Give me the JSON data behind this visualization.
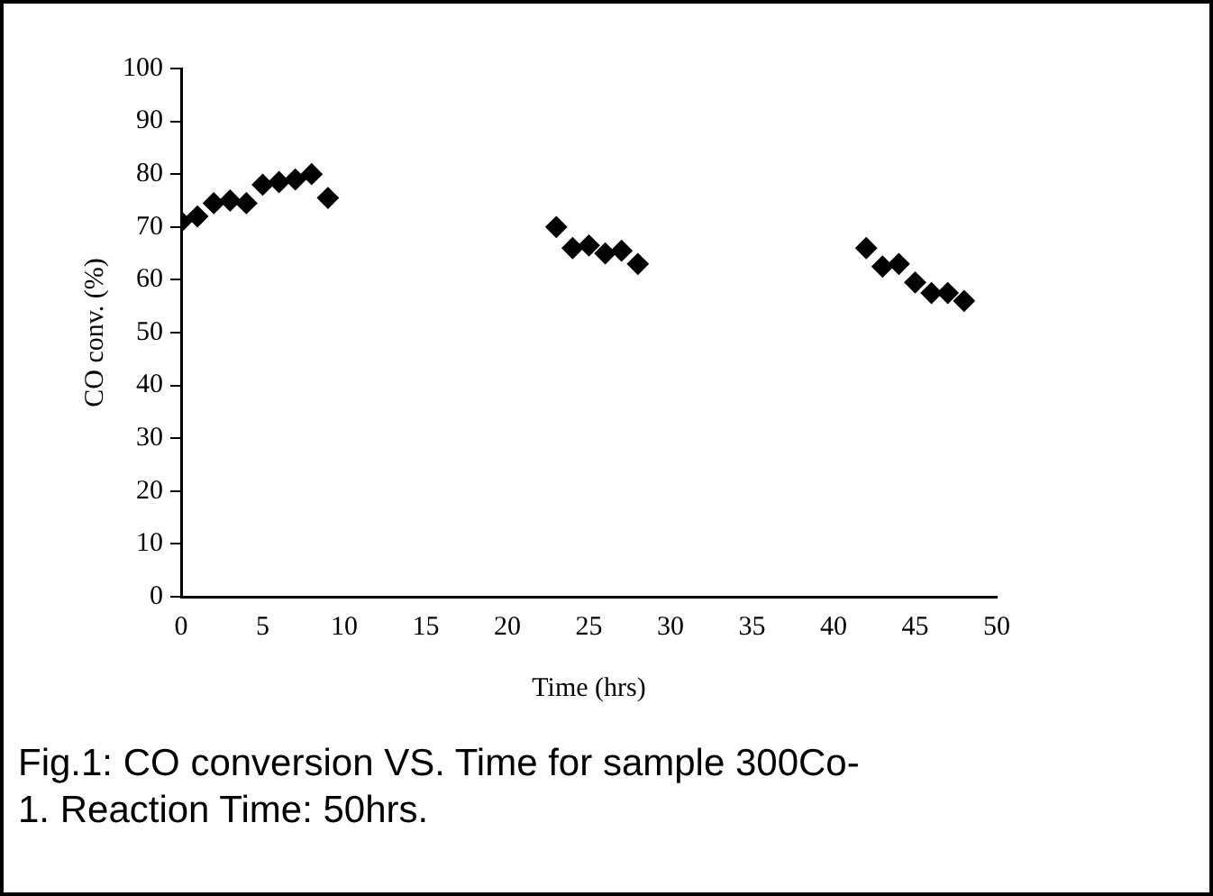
{
  "chart_data": {
    "type": "scatter",
    "xlabel": "Time (hrs)",
    "ylabel": "CO conv. (%)",
    "x": [
      0,
      1,
      2,
      3,
      4,
      5,
      6,
      7,
      8,
      9,
      23,
      24,
      25,
      26,
      27,
      28,
      42,
      43,
      44,
      45,
      46,
      47,
      48
    ],
    "series": [
      {
        "color": "#000000",
        "values": [
          71,
          72,
          74.5,
          75,
          74.5,
          78,
          78.5,
          79,
          80,
          75.5,
          70,
          66,
          66.5,
          65,
          65.5,
          63,
          66,
          62.5,
          63,
          59.5,
          57.5,
          57.5,
          56
        ]
      }
    ],
    "xlim": [
      0,
      50
    ],
    "xticks": [
      0,
      5,
      10,
      15,
      20,
      25,
      30,
      35,
      40,
      45,
      50
    ],
    "ylim": [
      0,
      100
    ],
    "yticks": [
      0,
      10,
      20,
      30,
      40,
      50,
      60,
      70,
      80,
      90,
      100
    ],
    "grid": false,
    "legend": false,
    "marker": "diamond",
    "annotations": [
      "Fig.1: CO conversion VS. Time for sample 300Co-1. Reaction Time: 50hrs."
    ]
  }
}
